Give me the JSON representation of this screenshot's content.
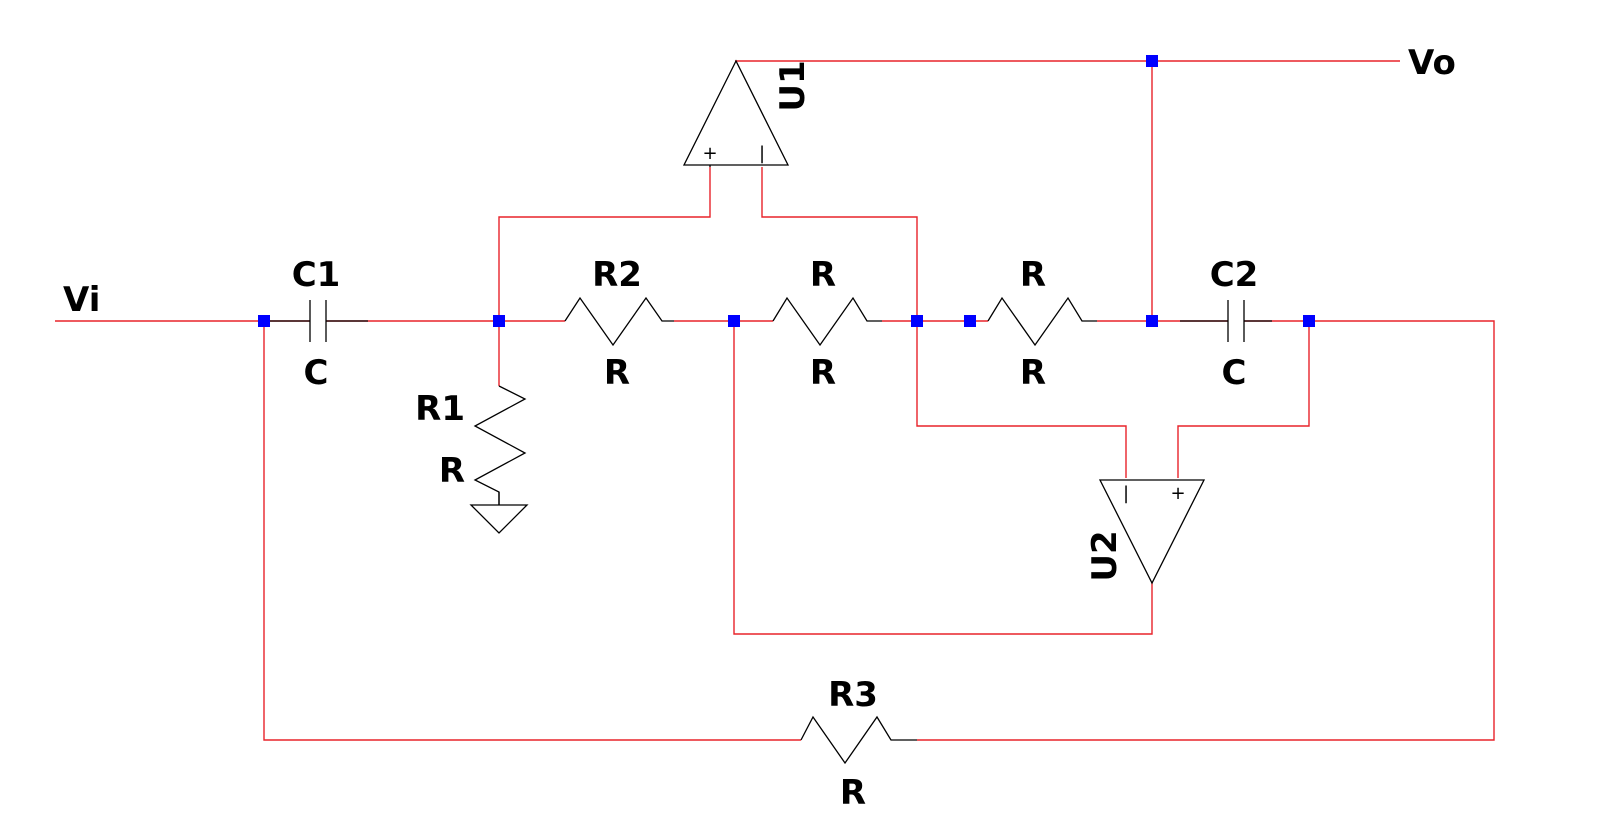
{
  "colors": {
    "wire": "#e8232a",
    "node": "#0000ff",
    "component": "#000000",
    "background": "#ffffff"
  },
  "ports": {
    "input": "Vi",
    "output": "Vo"
  },
  "components": {
    "C1": {
      "name": "C1",
      "value": "C"
    },
    "C2": {
      "name": "C2",
      "value": "C"
    },
    "R1": {
      "name": "R1",
      "value": "R"
    },
    "R2": {
      "name": "R2",
      "value": "R"
    },
    "R3": {
      "name": "R3",
      "value": "R"
    },
    "Ra": {
      "name": "R",
      "value": "R"
    },
    "Rb": {
      "name": "R",
      "value": "R"
    },
    "U1": {
      "name": "U1",
      "plus": "+",
      "minus": "|"
    },
    "U2": {
      "name": "U2",
      "plus": "+",
      "minus": "|"
    }
  }
}
